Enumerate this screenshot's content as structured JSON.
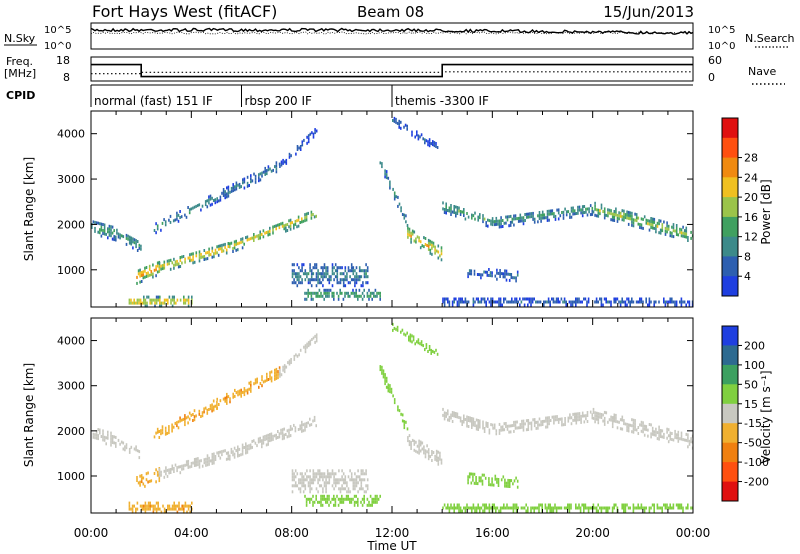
{
  "header": {
    "station": "Fort Hays West (fitACF)",
    "beam": "Beam 08",
    "date": "15/Jun/2013"
  },
  "top_panels": {
    "nsky_label": "N.Sky",
    "nsky_ticks": [
      "10^5",
      "10^0"
    ],
    "nsearch_label": "N.Search",
    "nsearch_ticks": [
      "10^5",
      "10^0"
    ],
    "freq_label": "Freq.",
    "freq_unit": "[MHz]",
    "freq_ticks": [
      "18",
      "8"
    ],
    "nave_label": "Nave",
    "nave_ticks": [
      "60",
      "0"
    ],
    "cpid_label": "CPID",
    "cpid_segments": [
      {
        "label": "normal (fast) 151 IF",
        "start_hr": 0,
        "end_hr": 6
      },
      {
        "label": "rbsp 200 IF",
        "start_hr": 6,
        "end_hr": 12
      },
      {
        "label": "themis -3300 IF",
        "start_hr": 12,
        "end_hr": 24
      }
    ],
    "freq_steps": [
      {
        "start_hr": 0,
        "end_hr": 2,
        "value": 17
      },
      {
        "start_hr": 2,
        "end_hr": 14,
        "value": 9.5
      },
      {
        "start_hr": 14,
        "end_hr": 24,
        "value": 17
      }
    ],
    "nave_steps": [
      {
        "start_hr": 0,
        "end_hr": 2,
        "value": 20
      },
      {
        "start_hr": 2,
        "end_hr": 14,
        "value": 25
      },
      {
        "start_hr": 14,
        "end_hr": 24,
        "value": 27
      }
    ]
  },
  "chart_data": [
    {
      "type": "heatmap",
      "quantity": "power",
      "ylabel": "Slant Range [km]",
      "xlabel": "",
      "xlim_hr": [
        0,
        24
      ],
      "ylim_km": [
        180,
        4500
      ],
      "y_ticks": [
        1000,
        2000,
        3000,
        4000
      ],
      "colorbar_label": "Power [dB]",
      "colorbar_ticks": [
        "4",
        "8",
        "12",
        "16",
        "20",
        "24",
        "28"
      ],
      "colorbar_colors": [
        "#1f3fe0",
        "#2d5fb0",
        "#3c8a8a",
        "#40a060",
        "#9bc44a",
        "#f0c020",
        "#f08a10",
        "#ff5010",
        "#e01010"
      ],
      "echo_bands": [
        {
          "start_hr": 0.0,
          "end_hr": 1.0,
          "r0_km": 1950,
          "r1_km": 1800,
          "width_km": 300,
          "value": 14
        },
        {
          "start_hr": 1.0,
          "end_hr": 2.0,
          "r0_km": 1800,
          "r1_km": 1500,
          "width_km": 250,
          "value": 12
        },
        {
          "start_hr": 1.8,
          "end_hr": 2.7,
          "r0_km": 850,
          "r1_km": 1050,
          "width_km": 300,
          "value": 26
        },
        {
          "start_hr": 2.7,
          "end_hr": 5.5,
          "r0_km": 1050,
          "r1_km": 1500,
          "width_km": 220,
          "value": 24
        },
        {
          "start_hr": 5.5,
          "end_hr": 9.0,
          "r0_km": 1500,
          "r1_km": 2250,
          "width_km": 250,
          "value": 20
        },
        {
          "start_hr": 2.5,
          "end_hr": 5.0,
          "r0_km": 1900,
          "r1_km": 2600,
          "width_km": 200,
          "value": 12
        },
        {
          "start_hr": 5.0,
          "end_hr": 7.5,
          "r0_km": 2600,
          "r1_km": 3300,
          "width_km": 200,
          "value": 10
        },
        {
          "start_hr": 7.5,
          "end_hr": 9.0,
          "r0_km": 3300,
          "r1_km": 4100,
          "width_km": 180,
          "value": 6
        },
        {
          "start_hr": 1.5,
          "end_hr": 4.0,
          "r0_km": 300,
          "r1_km": 300,
          "width_km": 200,
          "value": 24
        },
        {
          "start_hr": 8.0,
          "end_hr": 11.0,
          "r0_km": 900,
          "r1_km": 900,
          "width_km": 500,
          "value": 10
        },
        {
          "start_hr": 8.5,
          "end_hr": 11.5,
          "r0_km": 450,
          "r1_km": 450,
          "width_km": 200,
          "value": 16
        },
        {
          "start_hr": 11.5,
          "end_hr": 12.6,
          "r0_km": 3400,
          "r1_km": 2000,
          "width_km": 220,
          "value": 12
        },
        {
          "start_hr": 12.6,
          "end_hr": 14.0,
          "r0_km": 1800,
          "r1_km": 1350,
          "width_km": 300,
          "value": 24
        },
        {
          "start_hr": 12.0,
          "end_hr": 13.8,
          "r0_km": 4300,
          "r1_km": 3700,
          "width_km": 150,
          "value": 6
        },
        {
          "start_hr": 14.0,
          "end_hr": 16.0,
          "r0_km": 2400,
          "r1_km": 2050,
          "width_km": 250,
          "value": 14
        },
        {
          "start_hr": 16.0,
          "end_hr": 20.0,
          "r0_km": 2050,
          "r1_km": 2350,
          "width_km": 250,
          "value": 12
        },
        {
          "start_hr": 20.0,
          "end_hr": 24.0,
          "r0_km": 2350,
          "r1_km": 1750,
          "width_km": 280,
          "value": 18
        },
        {
          "start_hr": 15.0,
          "end_hr": 17.0,
          "r0_km": 950,
          "r1_km": 850,
          "width_km": 200,
          "value": 8
        },
        {
          "start_hr": 14.0,
          "end_hr": 24.0,
          "r0_km": 300,
          "r1_km": 300,
          "width_km": 150,
          "value": 6
        }
      ]
    },
    {
      "type": "heatmap",
      "quantity": "velocity",
      "ylabel": "Slant Range [km]",
      "xlabel": "Time UT",
      "xlim_hr": [
        0,
        24
      ],
      "ylim_km": [
        180,
        4500
      ],
      "y_ticks": [
        1000,
        2000,
        3000,
        4000
      ],
      "x_ticks": [
        "00:00",
        "04:00",
        "08:00",
        "12:00",
        "16:00",
        "20:00",
        "00:00"
      ],
      "colorbar_label": "Velocity [m s⁻¹]",
      "colorbar_ticks": [
        "200",
        "100",
        "50",
        "15",
        "-15",
        "-50",
        "-100",
        "-200"
      ],
      "colorbar_colors": [
        "#1f3fe0",
        "#2d6a90",
        "#3ca060",
        "#80d040",
        "#c8c8c0",
        "#f0b030",
        "#f08010",
        "#ff5010",
        "#e01010"
      ],
      "echo_bands": [
        {
          "start_hr": 0.0,
          "end_hr": 1.0,
          "r0_km": 1950,
          "r1_km": 1800,
          "width_km": 300,
          "value": 0
        },
        {
          "start_hr": 1.0,
          "end_hr": 2.0,
          "r0_km": 1800,
          "r1_km": 1500,
          "width_km": 250,
          "value": 0
        },
        {
          "start_hr": 1.8,
          "end_hr": 2.7,
          "r0_km": 850,
          "r1_km": 1050,
          "width_km": 300,
          "value": -40
        },
        {
          "start_hr": 2.7,
          "end_hr": 5.5,
          "r0_km": 1050,
          "r1_km": 1500,
          "width_km": 220,
          "value": 0
        },
        {
          "start_hr": 5.5,
          "end_hr": 9.0,
          "r0_km": 1500,
          "r1_km": 2250,
          "width_km": 250,
          "value": 0
        },
        {
          "start_hr": 2.5,
          "end_hr": 5.0,
          "r0_km": 1900,
          "r1_km": 2600,
          "width_km": 200,
          "value": -40
        },
        {
          "start_hr": 5.0,
          "end_hr": 7.5,
          "r0_km": 2600,
          "r1_km": 3300,
          "width_km": 200,
          "value": -40
        },
        {
          "start_hr": 7.5,
          "end_hr": 9.0,
          "r0_km": 3300,
          "r1_km": 4100,
          "width_km": 180,
          "value": 0
        },
        {
          "start_hr": 1.5,
          "end_hr": 4.0,
          "r0_km": 300,
          "r1_km": 300,
          "width_km": 200,
          "value": -40
        },
        {
          "start_hr": 8.0,
          "end_hr": 11.0,
          "r0_km": 900,
          "r1_km": 900,
          "width_km": 500,
          "value": 0
        },
        {
          "start_hr": 8.5,
          "end_hr": 11.5,
          "r0_km": 450,
          "r1_km": 450,
          "width_km": 200,
          "value": 30
        },
        {
          "start_hr": 11.5,
          "end_hr": 12.6,
          "r0_km": 3400,
          "r1_km": 2000,
          "width_km": 220,
          "value": 30
        },
        {
          "start_hr": 12.6,
          "end_hr": 14.0,
          "r0_km": 1800,
          "r1_km": 1350,
          "width_km": 300,
          "value": 0
        },
        {
          "start_hr": 12.0,
          "end_hr": 13.8,
          "r0_km": 4300,
          "r1_km": 3700,
          "width_km": 150,
          "value": 30
        },
        {
          "start_hr": 14.0,
          "end_hr": 16.0,
          "r0_km": 2400,
          "r1_km": 2050,
          "width_km": 250,
          "value": 0
        },
        {
          "start_hr": 16.0,
          "end_hr": 20.0,
          "r0_km": 2050,
          "r1_km": 2350,
          "width_km": 250,
          "value": 0
        },
        {
          "start_hr": 20.0,
          "end_hr": 24.0,
          "r0_km": 2350,
          "r1_km": 1750,
          "width_km": 280,
          "value": 0
        },
        {
          "start_hr": 15.0,
          "end_hr": 17.0,
          "r0_km": 950,
          "r1_km": 850,
          "width_km": 200,
          "value": 30
        },
        {
          "start_hr": 14.0,
          "end_hr": 24.0,
          "r0_km": 300,
          "r1_km": 300,
          "width_km": 150,
          "value": 30
        }
      ]
    }
  ]
}
